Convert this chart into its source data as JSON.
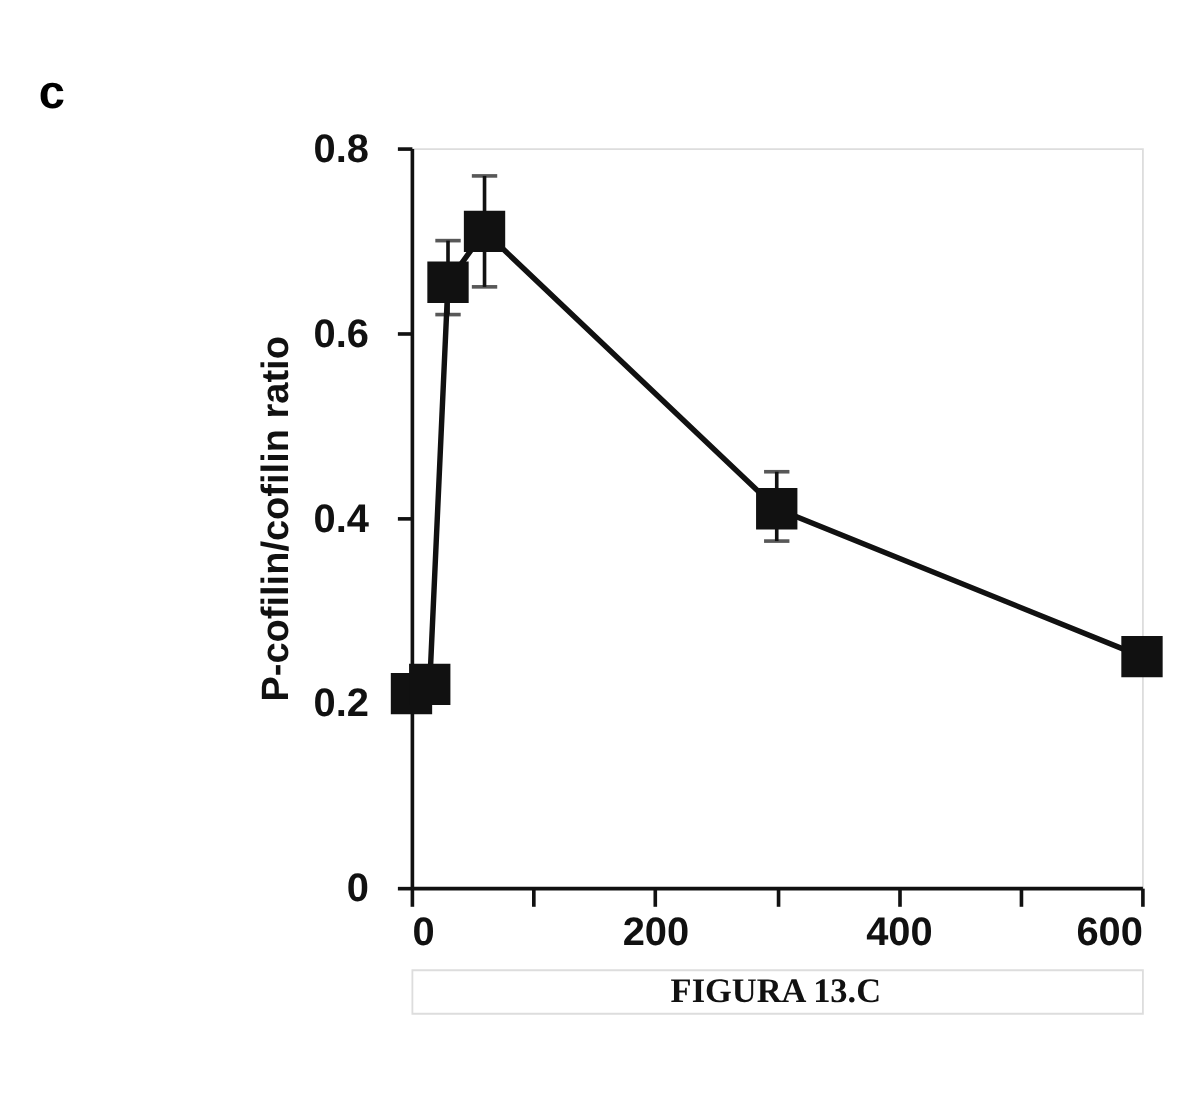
{
  "chart_data": {
    "type": "line",
    "title": "c",
    "ylabel": "P-cofilin/cofilin ratio",
    "x": [
      0,
      15,
      30,
      60,
      300,
      600
    ],
    "series": [
      {
        "color": "#111111",
        "values": [
          0.21,
          0.22,
          0.655,
          0.71,
          0.41,
          0.25
        ],
        "errors": [
          null,
          null,
          [
            0.62,
            0.7
          ],
          [
            0.65,
            0.77
          ],
          [
            0.375,
            0.45
          ],
          null
        ]
      }
    ],
    "xlim": [
      0,
      600
    ],
    "xticks": [
      0,
      {
        "value": 100,
        "label": null
      },
      200,
      {
        "value": 300,
        "label": null
      },
      400,
      {
        "value": 500,
        "label": null
      },
      600
    ],
    "ylim": [
      0,
      0.8
    ],
    "yticks": [
      0,
      0.2,
      0.4,
      0.6,
      0.8
    ],
    "marker": "square",
    "line_style": "solid",
    "grid": false,
    "annotations": [
      "FIGURA 13.C"
    ]
  }
}
